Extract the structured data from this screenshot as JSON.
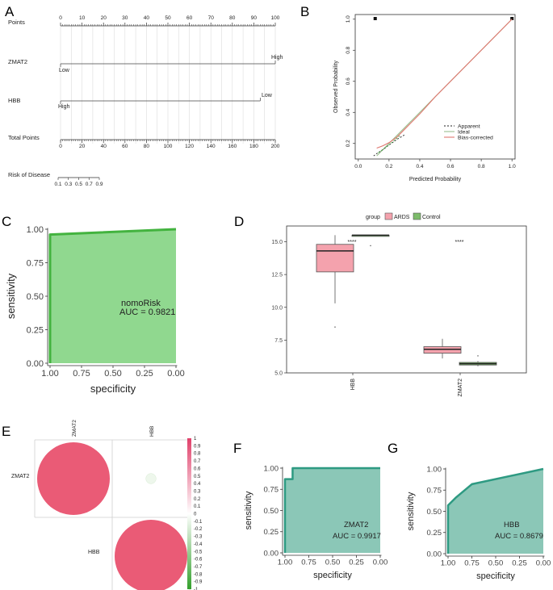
{
  "panels": {
    "A": {
      "letter": "A"
    },
    "B": {
      "letter": "B"
    },
    "C": {
      "letter": "C"
    },
    "D": {
      "letter": "D"
    },
    "E": {
      "letter": "E"
    },
    "F": {
      "letter": "F"
    },
    "G": {
      "letter": "G"
    }
  },
  "colors": {
    "roc_fill": "#90d88f",
    "roc_line": "#43b33f",
    "small_roc_fill": "#8bc7b7",
    "small_roc_line": "#2e9a82",
    "ards": "#f4a2ad",
    "control": "#7dbc6b",
    "corr_pos": "#ea5b76",
    "corr_neg": "#3aa33f",
    "ideal": "#9bbf8f",
    "bias": "#e0766f"
  },
  "chart_data": [
    {
      "panel": "A",
      "type": "nomogram",
      "rows": [
        {
          "label": "Points",
          "range": [
            0,
            100
          ],
          "ticks": [
            "0",
            "10",
            "20",
            "30",
            "40",
            "50",
            "60",
            "70",
            "80",
            "90",
            "100"
          ]
        },
        {
          "label": "ZMAT2",
          "low_label": "Low",
          "high_label": "High",
          "range_points": [
            0,
            100
          ]
        },
        {
          "label": "HBB",
          "low_label": "Low",
          "high_label": "High",
          "range_points": [
            0,
            93
          ]
        },
        {
          "label": "Total Points",
          "range": [
            0,
            200
          ],
          "ticks": [
            "0",
            "20",
            "40",
            "60",
            "80",
            "100",
            "120",
            "140",
            "160",
            "180",
            "200"
          ]
        },
        {
          "label": "Risk of Disease",
          "ticks": [
            "0.1",
            "0.3",
            "0.5",
            "0.7",
            "0.9"
          ]
        }
      ]
    },
    {
      "panel": "B",
      "type": "line",
      "xlabel": "Predicted Probability",
      "ylabel": "Observed Probability",
      "xticks": [
        "0.0",
        "0.2",
        "0.4",
        "0.6",
        "0.8",
        "1.0"
      ],
      "yticks": [
        "0.2",
        "0.4",
        "0.6",
        "0.8",
        "1.0"
      ],
      "xlim": [
        -0.02,
        1.02
      ],
      "ylim": [
        0.1,
        1.03
      ],
      "legend": [
        "Apparent",
        "Ideal",
        "Bias-corrected"
      ],
      "series": [
        {
          "name": "Apparent",
          "x": [
            0.1,
            0.12,
            0.16,
            0.2,
            0.25,
            0.3
          ],
          "y": [
            0.12,
            0.135,
            0.16,
            0.19,
            0.225,
            0.255
          ]
        },
        {
          "name": "Ideal",
          "x": [
            0.12,
            1.0
          ],
          "y": [
            0.12,
            1.0
          ]
        },
        {
          "name": "Bias-corrected",
          "x": [
            0.12,
            0.16,
            0.2,
            0.25,
            0.3,
            0.4,
            0.5,
            0.6,
            0.7,
            0.8,
            0.9,
            1.0
          ],
          "y": [
            0.17,
            0.185,
            0.205,
            0.24,
            0.29,
            0.39,
            0.5,
            0.6,
            0.7,
            0.8,
            0.9,
            1.0
          ]
        }
      ],
      "rug_x": [
        0.11,
        1.0
      ]
    },
    {
      "panel": "C",
      "type": "area",
      "title": "nomoRisk",
      "auc_text": "AUC = 0.9821",
      "xlabel": "specificity",
      "ylabel": "sensitivity",
      "xticks": [
        "1.00",
        "0.75",
        "0.50",
        "0.25",
        "0.00"
      ],
      "yticks": [
        "0.00",
        "0.25",
        "0.50",
        "0.75",
        "1.00"
      ],
      "specificity": [
        1.0,
        1.0,
        0.0
      ],
      "sensitivity": [
        0.0,
        0.96,
        1.0
      ]
    },
    {
      "panel": "D",
      "type": "box",
      "legend_title": "group",
      "legend": [
        "ARDS",
        "Control"
      ],
      "categories": [
        "HBB",
        "ZMAT2"
      ],
      "yticks": [
        "5.0",
        "7.5",
        "10.0",
        "12.5",
        "15.0"
      ],
      "ylim": [
        5.0,
        16.2
      ],
      "significance": [
        "****",
        "****"
      ],
      "boxes": [
        {
          "category": "HBB",
          "group": "ARDS",
          "min": 10.3,
          "q1": 12.7,
          "median": 14.3,
          "q3": 14.8,
          "max": 15.5,
          "outliers": [
            8.5
          ]
        },
        {
          "category": "HBB",
          "group": "Control",
          "min": 15.5,
          "q1": 15.5,
          "median": 15.5,
          "q3": 15.5,
          "max": 15.5,
          "outliers": [
            14.7
          ]
        },
        {
          "category": "ZMAT2",
          "group": "ARDS",
          "min": 6.1,
          "q1": 6.5,
          "median": 6.8,
          "q3": 7.0,
          "max": 7.6,
          "outliers": []
        },
        {
          "category": "ZMAT2",
          "group": "Control",
          "min": 5.5,
          "q1": 5.6,
          "median": 5.7,
          "q3": 5.8,
          "max": 5.9,
          "outliers": [
            6.3
          ]
        }
      ]
    },
    {
      "panel": "E",
      "type": "heatmap",
      "variables": [
        "ZMAT2",
        "HBB"
      ],
      "matrix": [
        [
          1.0,
          0.02
        ],
        [
          0.02,
          1.0
        ]
      ],
      "colorbar_ticks": [
        "1",
        "0.9",
        "0.8",
        "0.7",
        "0.6",
        "0.5",
        "0.4",
        "0.3",
        "0.2",
        "0.1",
        "0",
        "-0.1",
        "-0.2",
        "-0.3",
        "-0.4",
        "-0.5",
        "-0.6",
        "-0.7",
        "-0.8",
        "-0.9",
        "-1"
      ]
    },
    {
      "panel": "F",
      "type": "area",
      "title": "ZMAT2",
      "auc_text": "AUC = 0.9917",
      "xlabel": "specificity",
      "ylabel": "sensitivity",
      "xticks": [
        "1.00",
        "0.75",
        "0.50",
        "0.25",
        "0.00"
      ],
      "yticks": [
        "0.00",
        "0.25",
        "0.50",
        "0.75",
        "1.00"
      ],
      "specificity": [
        1.0,
        1.0,
        0.98,
        0.98,
        0.92,
        0.92,
        0.0
      ],
      "sensitivity": [
        0.0,
        0.87,
        0.87,
        0.87,
        0.87,
        1.0,
        1.0
      ]
    },
    {
      "panel": "G",
      "type": "area",
      "title": "HBB",
      "auc_text": "AUC = 0.8679",
      "xlabel": "specificity",
      "ylabel": "sensitivity",
      "xticks": [
        "1.00",
        "0.75",
        "0.50",
        "0.25",
        "0.00"
      ],
      "yticks": [
        "0.00",
        "0.25",
        "0.50",
        "0.75",
        "1.00"
      ],
      "specificity": [
        1.0,
        1.0,
        0.92,
        0.75,
        0.0
      ],
      "sensitivity": [
        0.0,
        0.57,
        0.66,
        0.82,
        1.0
      ]
    }
  ]
}
